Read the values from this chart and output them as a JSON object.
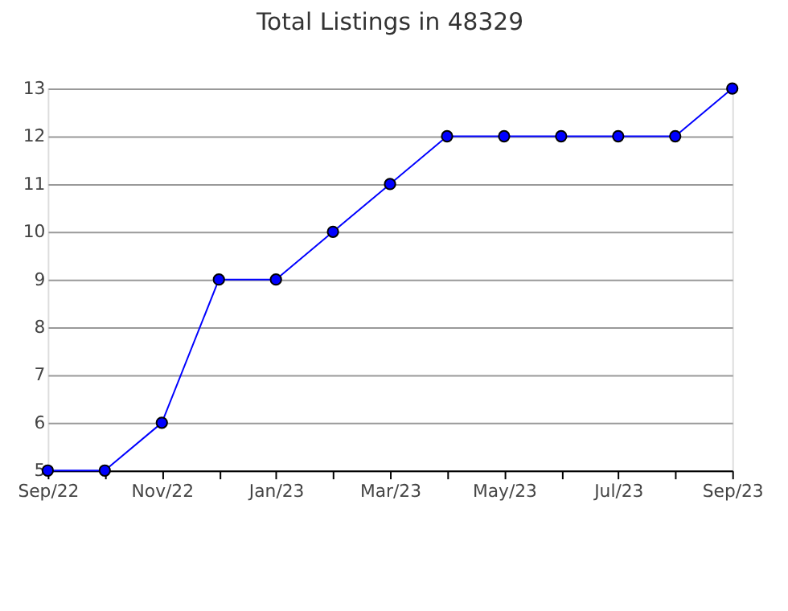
{
  "chart_data": {
    "type": "line",
    "title": "Total Listings in 48329",
    "categories": [
      "Sep/22",
      null,
      "Nov/22",
      null,
      "Jan/23",
      null,
      "Mar/23",
      null,
      "May/23",
      null,
      "Jul/23",
      null,
      "Sep/23"
    ],
    "series": [
      {
        "color": "#0000ff",
        "values": [
          5,
          5,
          6,
          9,
          9,
          10,
          11,
          12,
          12,
          12,
          12,
          12,
          13
        ]
      }
    ],
    "ylim": [
      5,
      13
    ],
    "yticks": [
      5,
      6,
      7,
      8,
      9,
      10,
      11,
      12,
      13
    ],
    "grid": "y",
    "marker": "circle",
    "line_style": "solid"
  }
}
